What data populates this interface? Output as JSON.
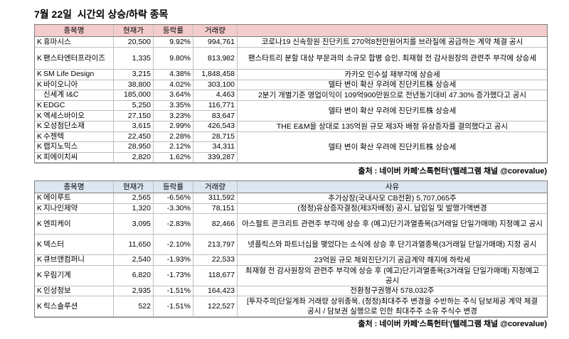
{
  "title": "7월 22일  시간외 상승/하락 종목",
  "colors": {
    "rising_header": "#f4cccc",
    "falling_header": "#dce6f1",
    "grid_line": "#bfbfbf",
    "table_border": "#7f7f7f"
  },
  "rising": {
    "headers": {
      "name": "종목명",
      "price": "현재가",
      "change": "등락률",
      "volume": "거래량"
    },
    "rows": [
      {
        "market": "K",
        "name": "휴마시스",
        "price": "20,500",
        "change": "9.92%",
        "volume": "994,761",
        "reason": "코로나19 신속항원 진단키트 270억8천만원어치를 브라질에 공급하는 계약 체결 공시"
      },
      {
        "market": "K",
        "name": "팬스타엔터프라이즈",
        "price": "1,335",
        "change": "9.80%",
        "volume": "813,982",
        "reason": "팬스타트리 분할 대상 부문과의 소규모 합병 승인, 최재형 전 감사원장의 관련주 부각에 상승세"
      },
      {
        "market": "K",
        "name": "SM Life Design",
        "price": "3,215",
        "change": "4.38%",
        "volume": "1,848,458",
        "reason": "카카오 인수설 재부각에 상승세"
      },
      {
        "market": "K",
        "name": "바이오니아",
        "price": "38,800",
        "change": "4.02%",
        "volume": "303,100",
        "reason": "델타 변이 확산 우려에 진단키트株 상승세"
      },
      {
        "name": "신세계 I&C",
        "price": "185,000",
        "change": "3.64%",
        "volume": "4,463",
        "reason": "2분기 개별기준 영업이익이 109억900만원으로 전년동기대비 47.30% 증가했다고 공시"
      },
      {
        "market": "K",
        "name": "EDGC",
        "price": "5,250",
        "change": "3.35%",
        "volume": "116,771",
        "reason": "델타 변이 확산 우려에 진단키트株 상승세"
      },
      {
        "market": "K",
        "name": "엑세스바이오",
        "price": "27,150",
        "change": "3.23%",
        "volume": "83,647"
      },
      {
        "market": "K",
        "name": "오성첨단소재",
        "price": "3,615",
        "change": "2.99%",
        "volume": "426,543",
        "reason": "THE E&M을 상대로 135억원 규모 제3자 배정 유상증자를 결의했다고 공시"
      },
      {
        "market": "K",
        "name": "수젠텍",
        "price": "22,450",
        "change": "2.28%",
        "volume": "28,715",
        "reason": "델타 변이 확산 우려에 진단키트株 상승세"
      },
      {
        "market": "K",
        "name": "랩지노믹스",
        "price": "28,950",
        "change": "2.12%",
        "volume": "34,311"
      },
      {
        "market": "K",
        "name": "피에이치씨",
        "price": "2,820",
        "change": "1.62%",
        "volume": "339,287"
      }
    ],
    "source": "출처 : 네이버 카페'스톡헌터'(텔레그램 채널 @corevalue)"
  },
  "falling": {
    "headers": {
      "name": "종목명",
      "price": "현재가",
      "change": "등락률",
      "volume": "거래량",
      "reason": "사유"
    },
    "rows": [
      {
        "market": "K",
        "name": "에이루트",
        "price": "2,565",
        "change": "-6.56%",
        "volume": "311,592",
        "reason": "추가상장(국내사모 CB전환) 5,707,065주"
      },
      {
        "market": "K",
        "name": "지나인제약",
        "price": "1,320",
        "change": "-3.30%",
        "volume": "78,151",
        "reason": "(정정)유상증자결정(제3자배정) 공시, 납입일 및 발행가액변경"
      },
      {
        "market": "K",
        "name": "엔피케이",
        "price": "3,095",
        "change": "-2.83%",
        "volume": "82,466",
        "reason": "아스팔트 콘크리트 관련주 부각에 상승 후 (예고)단기과열종목(3거래일 단일가매매) 지정예고 공시"
      },
      {
        "market": "K",
        "name": "덱스터",
        "price": "11,650",
        "change": "-2.10%",
        "volume": "213,797",
        "reason": "넷플릭스와 파트너십을 맺었다는 소식에 상승 후 단기과열종목(3거래일 단일가매매) 지정 공시"
      },
      {
        "market": "K",
        "name": "큐브앤컴퍼니",
        "price": "2,540",
        "change": "-1.93%",
        "volume": "22,533",
        "reason": "23억원 규모 체외진단기기 공급계약 해지에 하락세"
      },
      {
        "market": "K",
        "name": "우림기계",
        "price": "6,820",
        "change": "-1.73%",
        "volume": "118,677",
        "reason": "최재형 전 감사원장의 관련주 부각에 상승 후 (예고)단기과열종목(3거래일 단일가매매) 지정예고 공시"
      },
      {
        "market": "K",
        "name": "인성정보",
        "price": "2,935",
        "change": "-1.51%",
        "volume": "164,423",
        "reason": "전환청구권행사 578,032주"
      },
      {
        "market": "K",
        "name": "릭스솔루션",
        "price": "522",
        "change": "-1.51%",
        "volume": "122,527",
        "reason": "[투자주의]단일계좌 거래량 상위종목, (정정)최대주주 변경을 수반하는 주식 담보제공 계약 체결 공시 / 담보권 실행으로 인한 최대주주 소유 주식수 변경"
      }
    ],
    "source": "출처 : 네이버 카페'스톡헌터'(텔레그램 채널 @corevalue)"
  }
}
